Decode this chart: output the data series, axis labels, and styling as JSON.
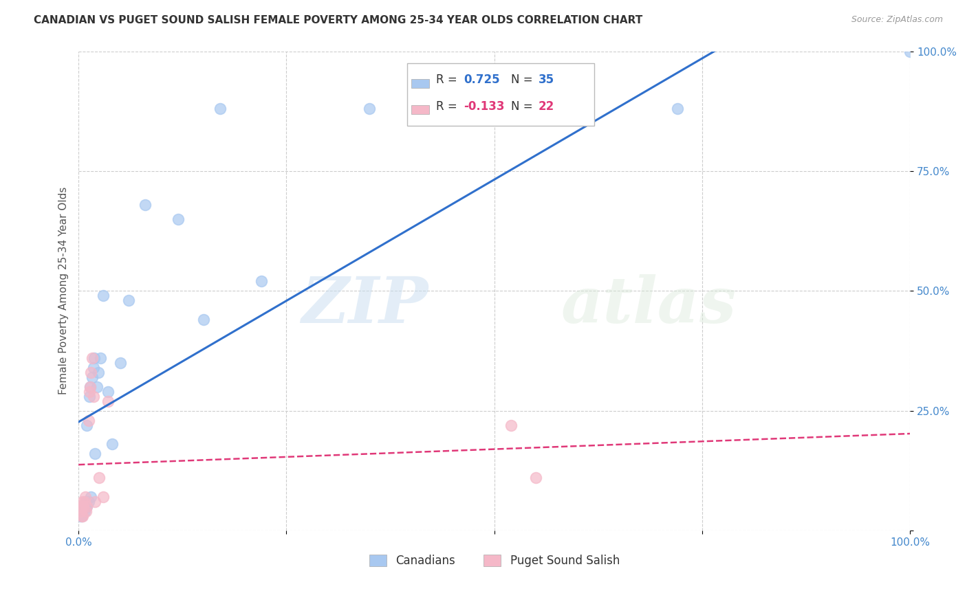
{
  "title": "CANADIAN VS PUGET SOUND SALISH FEMALE POVERTY AMONG 25-34 YEAR OLDS CORRELATION CHART",
  "source": "Source: ZipAtlas.com",
  "ylabel": "Female Poverty Among 25-34 Year Olds",
  "xlim": [
    0.0,
    1.0
  ],
  "ylim": [
    0.0,
    1.0
  ],
  "xticks": [
    0.0,
    0.25,
    0.5,
    0.75,
    1.0
  ],
  "xticklabels": [
    "0.0%",
    "",
    "",
    "",
    "100.0%"
  ],
  "yticks": [
    0.0,
    0.25,
    0.5,
    0.75,
    1.0
  ],
  "yticklabels": [
    "",
    "25.0%",
    "50.0%",
    "75.0%",
    "100.0%"
  ],
  "canadians_color": "#a8c8f0",
  "puget_color": "#f5b8c8",
  "line_canadian_color": "#3070cc",
  "line_puget_color": "#e03878",
  "R_canadian": 0.725,
  "N_canadian": 35,
  "R_puget": -0.133,
  "N_puget": 22,
  "watermark_zip": "ZIP",
  "watermark_atlas": "atlas",
  "canadians_x": [
    0.002,
    0.003,
    0.004,
    0.005,
    0.005,
    0.006,
    0.007,
    0.008,
    0.009,
    0.01,
    0.01,
    0.012,
    0.013,
    0.014,
    0.015,
    0.016,
    0.018,
    0.019,
    0.02,
    0.022,
    0.024,
    0.026,
    0.03,
    0.035,
    0.04,
    0.05,
    0.06,
    0.08,
    0.12,
    0.15,
    0.17,
    0.22,
    0.35,
    0.72,
    1.0
  ],
  "canadians_y": [
    0.03,
    0.04,
    0.03,
    0.04,
    0.05,
    0.05,
    0.04,
    0.05,
    0.06,
    0.05,
    0.22,
    0.06,
    0.28,
    0.3,
    0.07,
    0.32,
    0.34,
    0.36,
    0.16,
    0.3,
    0.33,
    0.36,
    0.49,
    0.29,
    0.18,
    0.35,
    0.48,
    0.68,
    0.65,
    0.44,
    0.88,
    0.52,
    0.88,
    0.88,
    1.0
  ],
  "puget_x": [
    0.002,
    0.003,
    0.004,
    0.005,
    0.005,
    0.006,
    0.007,
    0.008,
    0.009,
    0.01,
    0.012,
    0.013,
    0.014,
    0.015,
    0.016,
    0.018,
    0.02,
    0.025,
    0.03,
    0.035,
    0.52,
    0.55
  ],
  "puget_y": [
    0.04,
    0.05,
    0.03,
    0.03,
    0.06,
    0.05,
    0.06,
    0.07,
    0.04,
    0.05,
    0.23,
    0.29,
    0.3,
    0.33,
    0.36,
    0.28,
    0.06,
    0.11,
    0.07,
    0.27,
    0.22,
    0.11
  ]
}
